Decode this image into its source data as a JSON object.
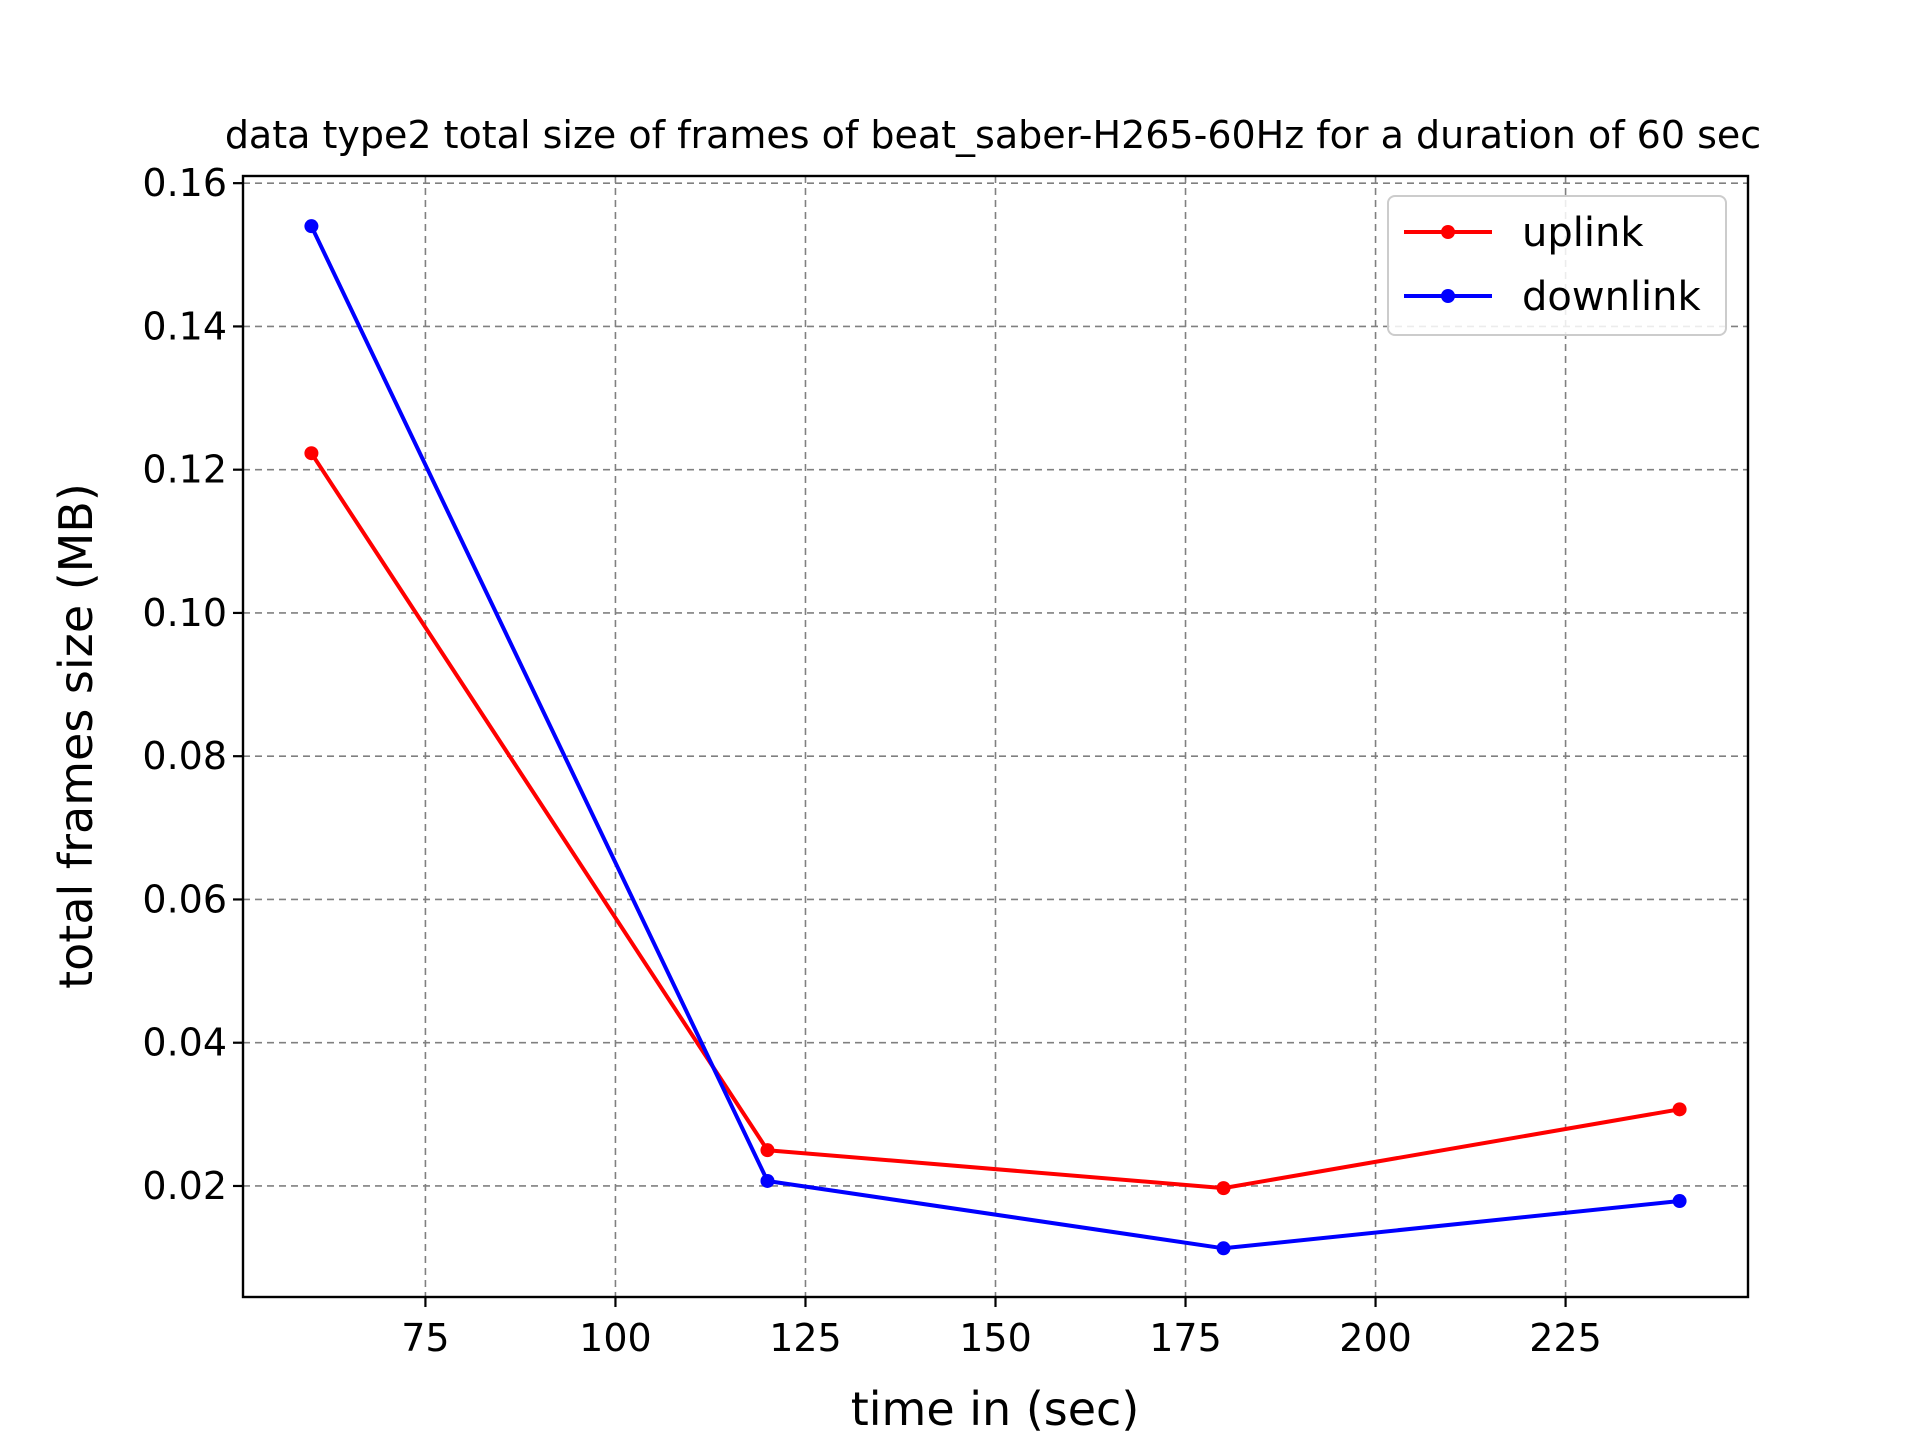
{
  "chart_data": {
    "type": "line",
    "title": "data type2 total size of frames of beat_saber-H265-60Hz for a duration of 60 sec",
    "xlabel": "time in (sec)",
    "ylabel": "total frames size (MB)",
    "xlim": [
      51,
      249
    ],
    "ylim": [
      0.0045,
      0.161
    ],
    "xticks": [
      75,
      100,
      125,
      150,
      175,
      200,
      225
    ],
    "xtick_labels": [
      "75",
      "100",
      "125",
      "150",
      "175",
      "200",
      "225"
    ],
    "yticks": [
      0.02,
      0.04,
      0.06,
      0.08,
      0.1,
      0.12,
      0.14,
      0.16
    ],
    "ytick_labels": [
      "0.02",
      "0.04",
      "0.06",
      "0.08",
      "0.10",
      "0.12",
      "0.14",
      "0.16"
    ],
    "grid": true,
    "legend_position": "top-right",
    "x": [
      60,
      120,
      180,
      240
    ],
    "series": [
      {
        "name": "uplink",
        "color": "#ff0000",
        "values": [
          0.1223,
          0.025,
          0.0197,
          0.0307
        ]
      },
      {
        "name": "downlink",
        "color": "#0000ff",
        "values": [
          0.154,
          0.0207,
          0.0113,
          0.0179
        ]
      }
    ]
  }
}
